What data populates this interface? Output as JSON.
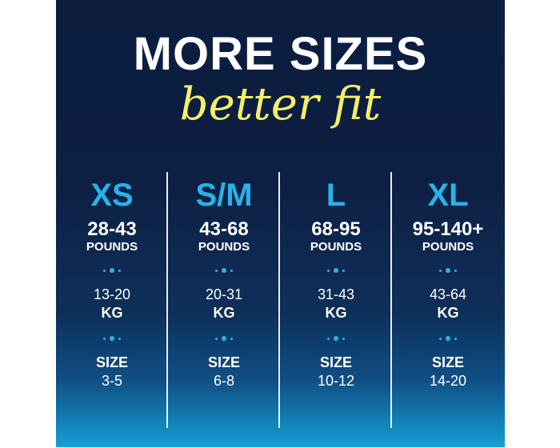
{
  "headline": "MORE SIZES",
  "tagline": "better fit",
  "colors": {
    "background": "#0c1d3e",
    "accent_blue": "#27b3e8",
    "script_yellow": "#f4ef6a"
  },
  "sizes": [
    {
      "size": "XS",
      "pounds": "28-43",
      "pounds_unit": "POUNDS",
      "kg": "13-20",
      "kg_unit": "KG",
      "size_label": "SIZE",
      "size_range": "3-5"
    },
    {
      "size": "S/M",
      "pounds": "43-68",
      "pounds_unit": "POUNDS",
      "kg": "20-31",
      "kg_unit": "KG",
      "size_label": "SIZE",
      "size_range": "6-8"
    },
    {
      "size": "L",
      "pounds": "68-95",
      "pounds_unit": "POUNDS",
      "kg": "31-43",
      "kg_unit": "KG",
      "size_label": "SIZE",
      "size_range": "10-12"
    },
    {
      "size": "XL",
      "pounds": "95-140+",
      "pounds_unit": "POUNDS",
      "kg": "43-64",
      "kg_unit": "KG",
      "size_label": "SIZE",
      "size_range": "14-20"
    }
  ]
}
